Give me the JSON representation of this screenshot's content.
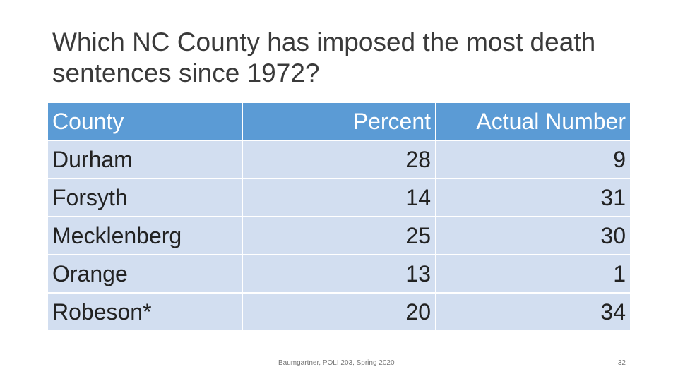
{
  "slide": {
    "title": "Which NC County has imposed the most death sentences since 1972?",
    "footer": "Baumgartner, POLI 203, Spring 2020",
    "page_number": "32"
  },
  "table": {
    "headers": [
      "County",
      "Percent",
      "Actual Number"
    ],
    "rows": [
      [
        "Durham",
        "28",
        "9"
      ],
      [
        "Forsyth",
        "14",
        "31"
      ],
      [
        "Mecklenberg",
        "25",
        "30"
      ],
      [
        "Orange",
        "13",
        "1"
      ],
      [
        "Robeson*",
        "20",
        "34"
      ]
    ]
  },
  "colors": {
    "header_fill": "#5b9bd5",
    "row_fill": "#d2def0",
    "title_text": "#3a3a3a"
  }
}
